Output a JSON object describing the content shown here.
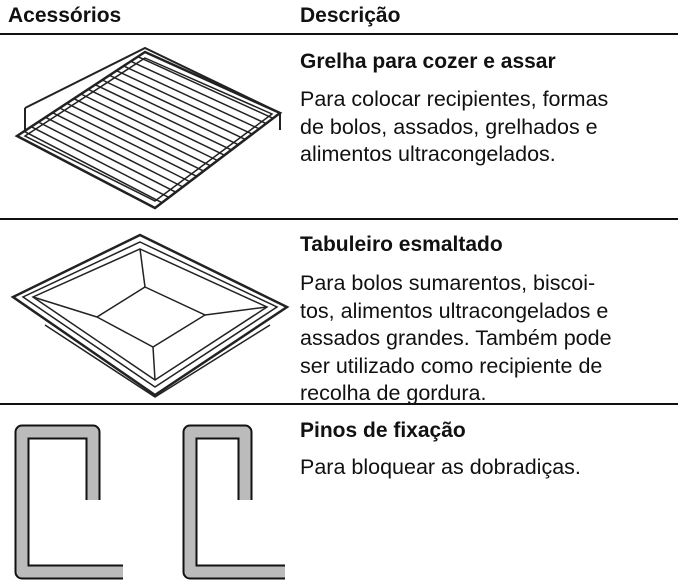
{
  "table": {
    "header": [
      "Acessórios",
      "Descrição"
    ],
    "rows": [
      {
        "title": "Grelha para cozer e assar",
        "lines": [
          "Para colocar recipientes, formas",
          "de bolos, assados, grelhados e",
          "alimentos ultracongelados."
        ]
      },
      {
        "title": "Tabuleiro esmaltado",
        "lines": [
          "Para bolos sumarentos, biscoi-",
          "tos, alimentos ultracongelados e",
          "assados grandes. Também pode",
          "ser utilizado como recipiente de",
          "recolha de gordura."
        ]
      },
      {
        "title": "Pinos de fixação",
        "lines": [
          "Para bloquear as dobradiças."
        ]
      }
    ]
  }
}
